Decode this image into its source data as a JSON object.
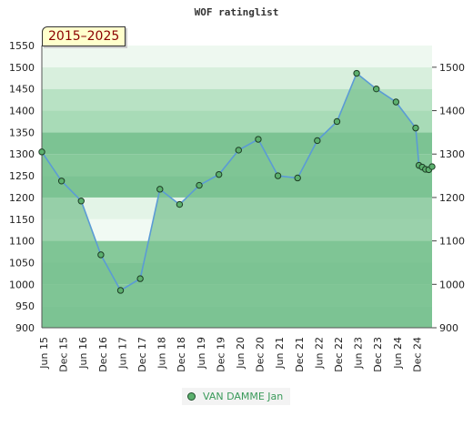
{
  "chart_data": {
    "type": "area",
    "title": "WOF ratinglist",
    "range_label": "2015–2025",
    "ylim": [
      900,
      1550
    ],
    "y_ticks_left": [
      900,
      950,
      1000,
      1050,
      1100,
      1150,
      1200,
      1250,
      1300,
      1350,
      1400,
      1450,
      1500,
      1550
    ],
    "y_ticks_right": [
      900,
      1000,
      1100,
      1200,
      1300,
      1400,
      1500
    ],
    "x_tick_labels": [
      "Jun 15",
      "Dec 15",
      "Jun 16",
      "Dec 16",
      "Jun 17",
      "Dec 17",
      "Jun 18",
      "Dec 18",
      "Jun 19",
      "Dec 19",
      "Jun 20",
      "Dec 20",
      "Jun 21",
      "Dec 21",
      "Jun 22",
      "Dec 22",
      "Jun 23",
      "Dec 23",
      "Jun 24",
      "Dec 24"
    ],
    "grid": true,
    "legend_position": "bottom",
    "series": [
      {
        "name": "VAN DAMME Jan",
        "line_color": "#5b9bd5",
        "fill_color": "#7cc393",
        "marker_color": "#5cb06e",
        "points": [
          [
            "2015-06",
            1305
          ],
          [
            "2015-12",
            1238
          ],
          [
            "2016-06",
            1192
          ],
          [
            "2016-12",
            1068
          ],
          [
            "2017-06",
            986
          ],
          [
            "2017-12",
            1013
          ],
          [
            "2018-06",
            1219
          ],
          [
            "2018-12",
            1184
          ],
          [
            "2019-06",
            1228
          ],
          [
            "2019-12",
            1253
          ],
          [
            "2020-06",
            1309
          ],
          [
            "2020-12",
            1334
          ],
          [
            "2021-06",
            1250
          ],
          [
            "2021-12",
            1245
          ],
          [
            "2022-06",
            1331
          ],
          [
            "2022-12",
            1375
          ],
          [
            "2023-06",
            1486
          ],
          [
            "2023-12",
            1450
          ],
          [
            "2024-06",
            1420
          ],
          [
            "2024-12",
            1360
          ],
          [
            "2025-01",
            1274
          ],
          [
            "2025-02",
            1270
          ],
          [
            "2025-03",
            1265
          ],
          [
            "2025-04",
            1264
          ],
          [
            "2025-05",
            1271
          ]
        ]
      }
    ]
  }
}
